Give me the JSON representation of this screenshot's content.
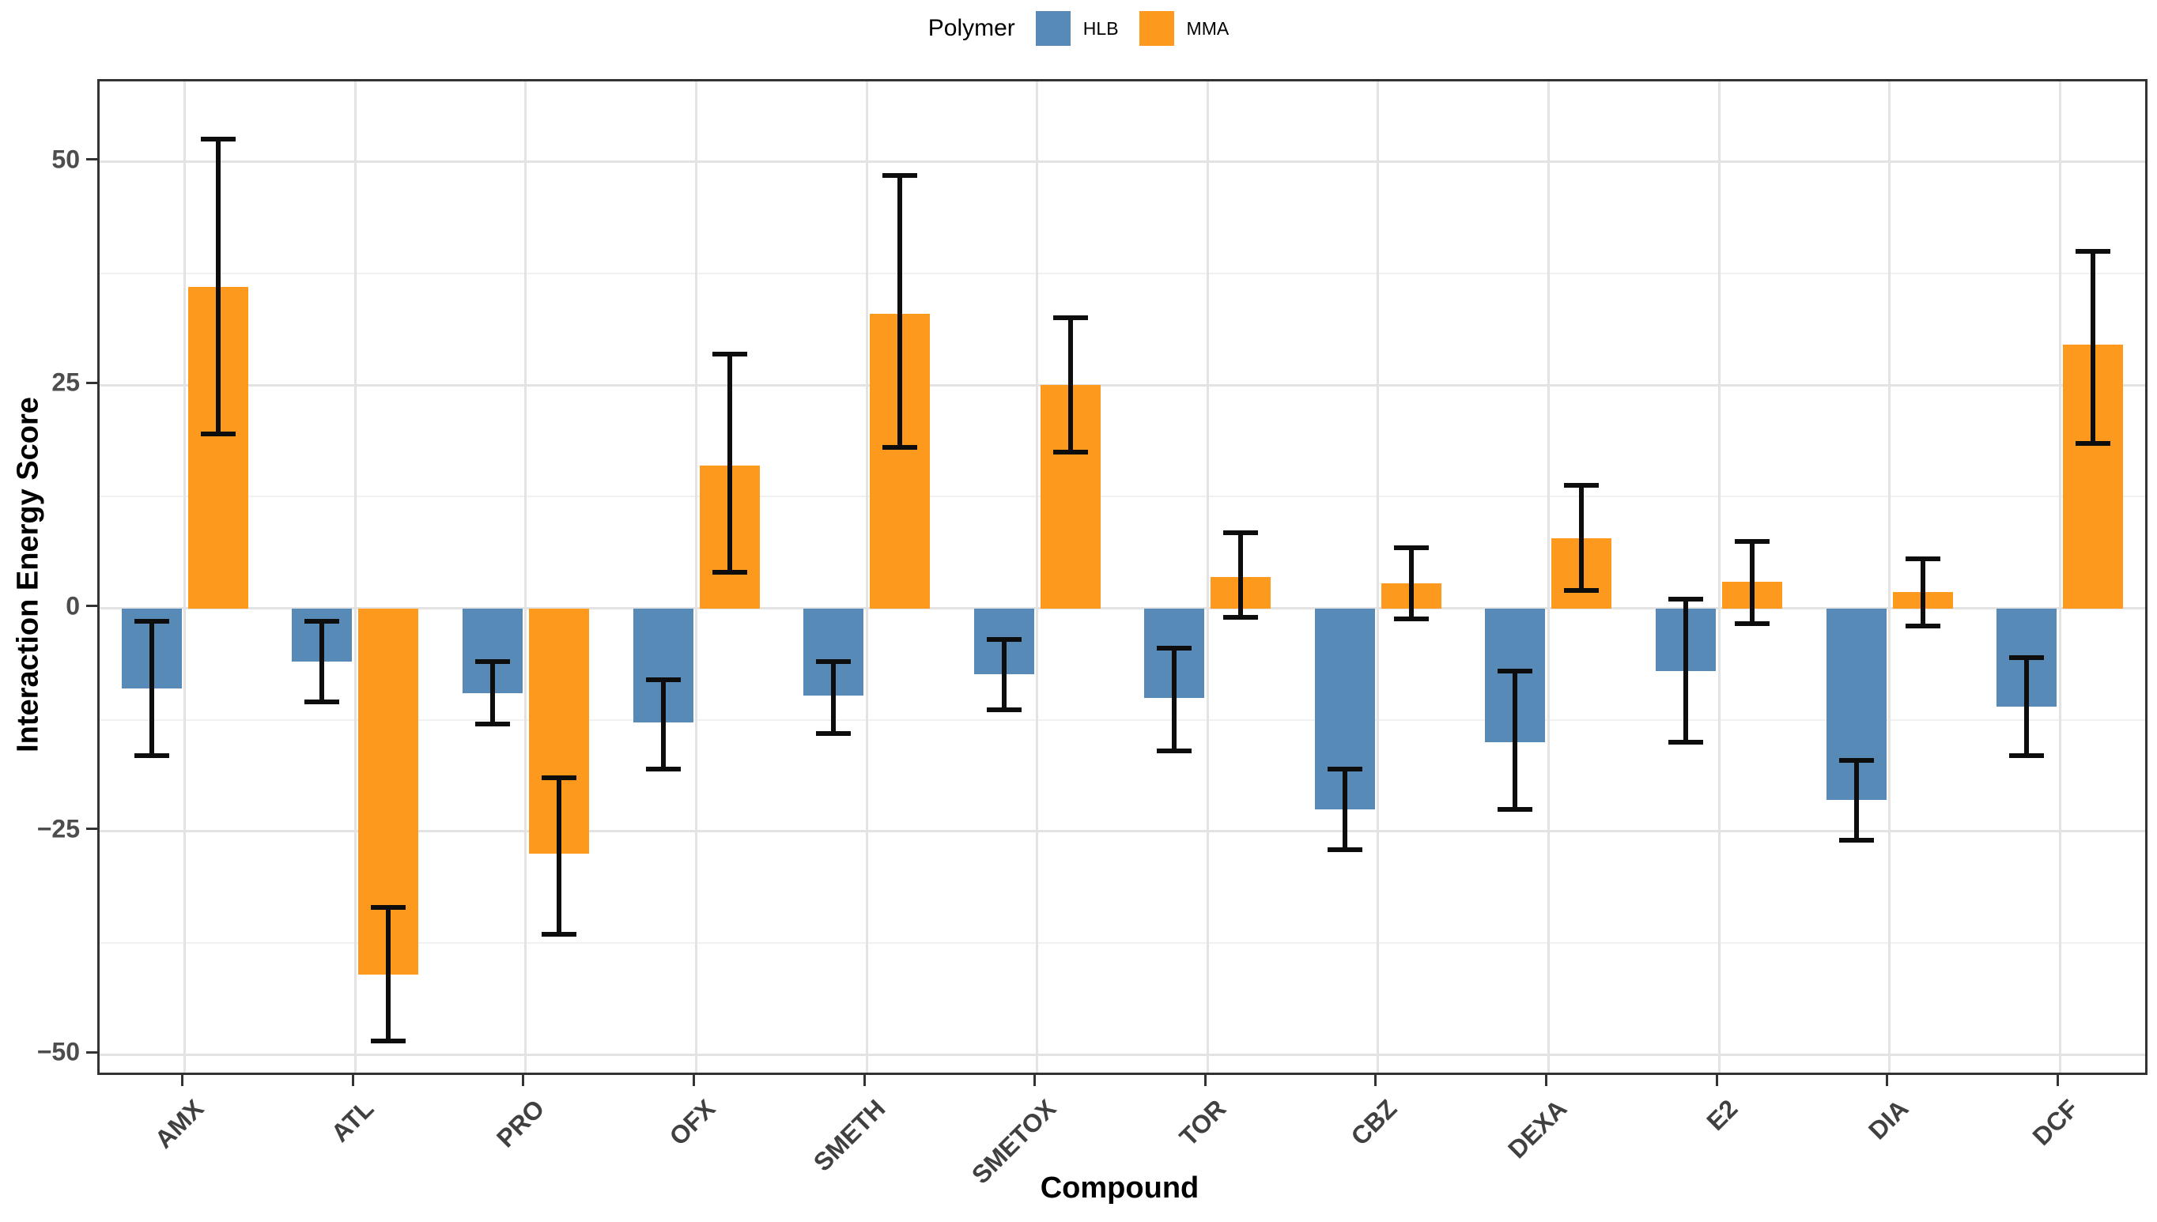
{
  "legend": {
    "title": "Polymer",
    "items": [
      {
        "label": "HLB",
        "color": "#588AB8"
      },
      {
        "label": "MMA",
        "color": "#FD9A1E"
      }
    ]
  },
  "axes": {
    "y": {
      "title": "Interaction Energy Score",
      "ticks": [
        50,
        25,
        0,
        -25,
        -50
      ],
      "tick_labels": [
        "50",
        "25",
        "0",
        "−25",
        "−50"
      ]
    },
    "x": {
      "title": "Compound"
    }
  },
  "chart_data": {
    "type": "bar",
    "title": "",
    "xlabel": "Compound",
    "ylabel": "Interaction Energy Score",
    "categories": [
      "AMX",
      "ATL",
      "PRO",
      "OFX",
      "SMETH",
      "SMETOX",
      "TOR",
      "CBZ",
      "DEXA",
      "E2",
      "DIA",
      "DCF"
    ],
    "series": [
      {
        "name": "HLB",
        "color": "#588AB8",
        "values": [
          -9.0,
          -6.0,
          -9.5,
          -12.8,
          -9.8,
          -7.4,
          -10.0,
          -22.5,
          -15.0,
          -7.0,
          -21.5,
          -11.0
        ],
        "err_low": [
          -16.5,
          -10.5,
          -13.0,
          -18.0,
          -14.0,
          -11.4,
          -16.0,
          -27.0,
          -22.5,
          -15.0,
          -26.0,
          -16.5
        ],
        "err_high": [
          -1.5,
          -1.5,
          -6.0,
          -8.0,
          -6.0,
          -3.5,
          -4.5,
          -18.0,
          -7.0,
          1.0,
          -17.0,
          -5.5
        ]
      },
      {
        "name": "MMA",
        "color": "#FD9A1E",
        "values": [
          36.0,
          -41.0,
          -27.5,
          16.0,
          33.0,
          25.0,
          3.5,
          2.8,
          7.8,
          3.0,
          1.8,
          29.5
        ],
        "err_low": [
          19.5,
          -48.5,
          -36.5,
          4.0,
          18.0,
          17.5,
          -1.0,
          -1.2,
          2.0,
          -1.7,
          -2.0,
          18.5
        ],
        "err_high": [
          52.5,
          -33.5,
          -19.0,
          28.5,
          48.5,
          32.5,
          8.5,
          6.8,
          13.8,
          7.5,
          5.5,
          40.0
        ]
      }
    ],
    "ylim": [
      -52,
      59
    ],
    "grid": {
      "major": [
        50,
        25,
        0,
        -25,
        -50
      ],
      "minor": [
        37.5,
        12.5,
        -12.5,
        -37.5
      ],
      "vertical": "category-centers"
    },
    "legend_position": "top-center",
    "error_bars": true
  },
  "colors": {
    "panel_border": "#333333",
    "grid_major": "#e3e3e3",
    "grid_minor": "#f1f1f1",
    "error_bar": "#0d0d0d",
    "tick_label": "#4d4d4d",
    "axis_title": "#000000",
    "background": "#ffffff"
  }
}
